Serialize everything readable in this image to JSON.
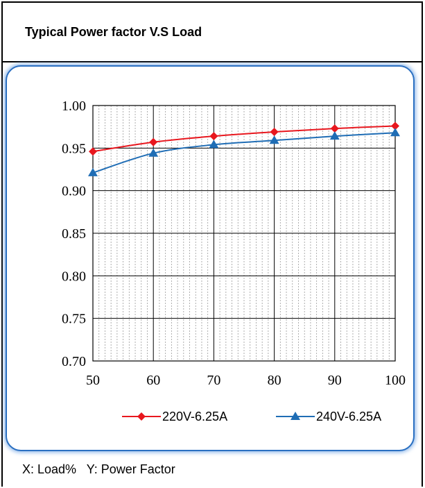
{
  "page": {
    "title": "Typical Power factor V.S Load",
    "footer": "X: Load%   Y: Power Factor"
  },
  "colors": {
    "series1": "#e8171e",
    "series2": "#1f6db5",
    "frame_accent": "#2a6fc1"
  },
  "chart_data": {
    "type": "line",
    "title": "",
    "xlabel": "",
    "ylabel": "",
    "x": [
      50,
      60,
      70,
      80,
      90,
      100
    ],
    "xlim": [
      50,
      100
    ],
    "ylim": [
      0.7,
      1.0
    ],
    "x_ticks": [
      "50",
      "60",
      "70",
      "80",
      "90",
      "100"
    ],
    "y_ticks": [
      "1.00",
      "0.95",
      "0.90",
      "0.85",
      "0.80",
      "0.75",
      "0.70"
    ],
    "grid": true,
    "legend_position": "bottom",
    "series": [
      {
        "name": "220V-6.25A",
        "marker": "diamond",
        "values": [
          0.946,
          0.957,
          0.964,
          0.969,
          0.973,
          0.976
        ]
      },
      {
        "name": "240V-6.25A",
        "marker": "triangle",
        "values": [
          0.921,
          0.944,
          0.954,
          0.959,
          0.964,
          0.968
        ]
      }
    ]
  }
}
